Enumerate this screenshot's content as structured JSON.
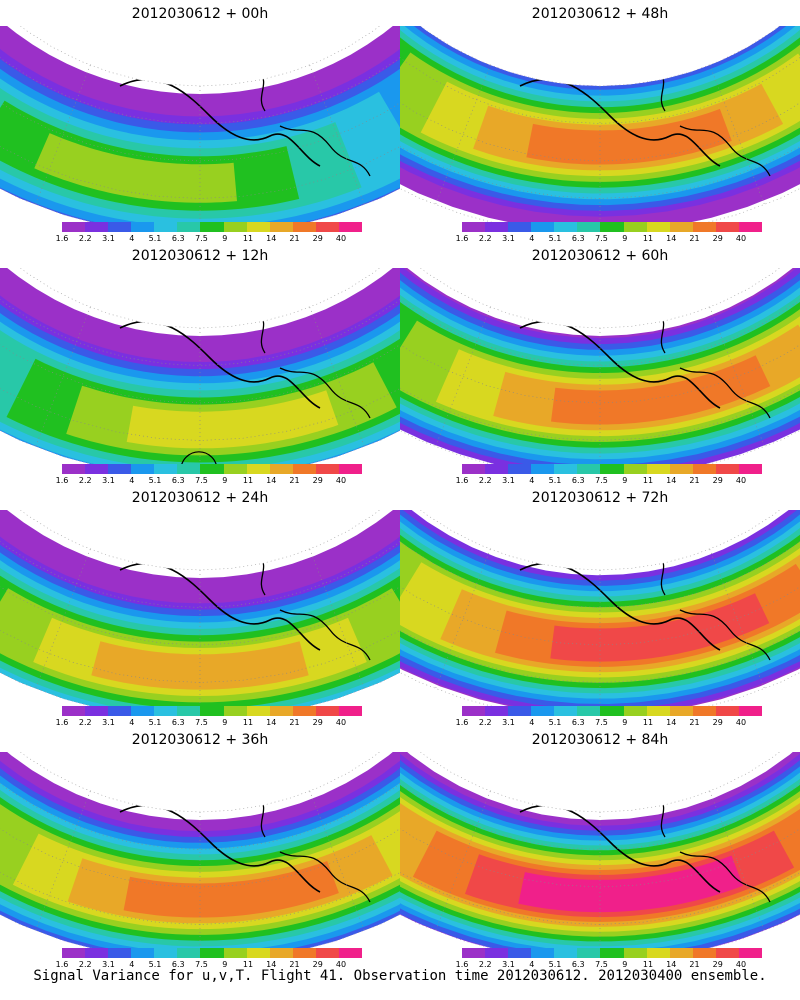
{
  "caption": "Signal Variance for u,v,T. Flight 41. Observation time 2012030612. 2012030400 ensemble.",
  "colorbar": {
    "labels": [
      "1.6",
      "2.2",
      "3.1",
      "4",
      "5.1",
      "6.3",
      "7.5",
      "9",
      "11",
      "14",
      "21",
      "29",
      "40"
    ],
    "colors": [
      "#9b30c8",
      "#7a30e0",
      "#3a5ae8",
      "#1a98ee",
      "#2ac0e0",
      "#28c8a8",
      "#20c020",
      "#98d020",
      "#d8d820",
      "#e8a828",
      "#f07828",
      "#f04848",
      "#f0208a"
    ]
  },
  "panels": [
    {
      "title": "2012030612 + 00h",
      "intensity": 0.45,
      "hotspot": [
        -0.1,
        0.25
      ],
      "circle": false
    },
    {
      "title": "2012030612 + 48h",
      "intensity": 0.78,
      "hotspot": [
        0.05,
        -0.15
      ],
      "circle": false
    },
    {
      "title": "2012030612 + 12h",
      "intensity": 0.55,
      "hotspot": [
        0.05,
        0.3
      ],
      "circle": true
    },
    {
      "title": "2012030612 + 60h",
      "intensity": 0.82,
      "hotspot": [
        0.1,
        0.05
      ],
      "circle": false
    },
    {
      "title": "2012030612 + 24h",
      "intensity": 0.65,
      "hotspot": [
        0.0,
        0.3
      ],
      "circle": false
    },
    {
      "title": "2012030612 + 72h",
      "intensity": 0.9,
      "hotspot": [
        0.1,
        0.0
      ],
      "circle": false
    },
    {
      "title": "2012030612 + 36h",
      "intensity": 0.75,
      "hotspot": [
        0.05,
        0.15
      ],
      "circle": false
    },
    {
      "title": "2012030612 + 84h",
      "intensity": 0.95,
      "hotspot": [
        0.05,
        0.1
      ],
      "circle": false
    }
  ]
}
